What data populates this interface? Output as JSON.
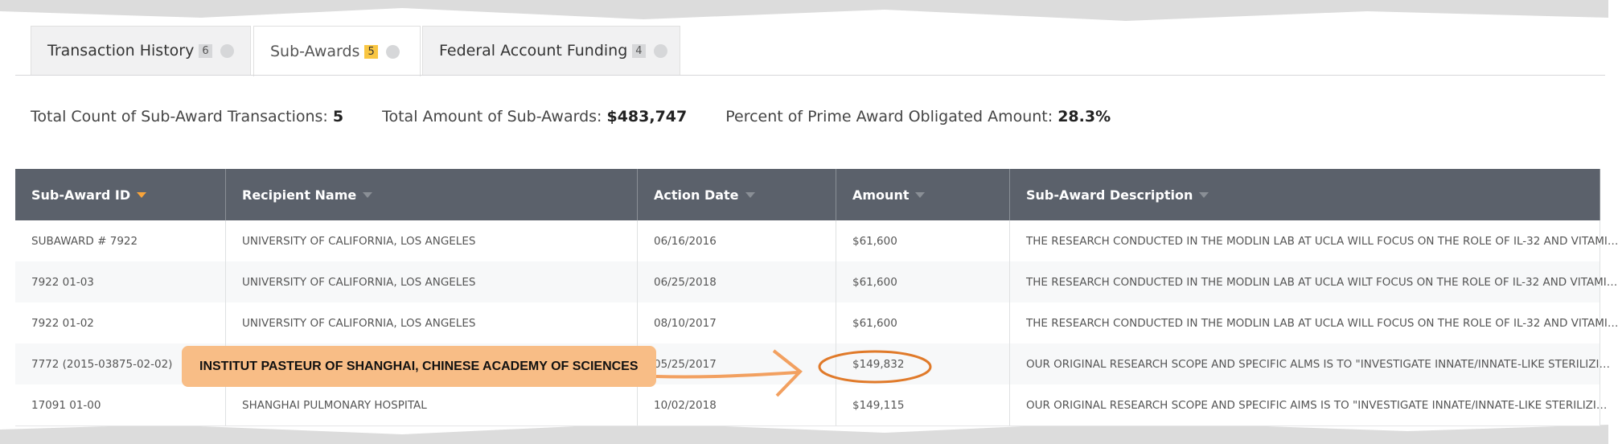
{
  "tabs": [
    {
      "label": "Transaction History",
      "badge": "6"
    },
    {
      "label": "Sub-Awards",
      "badge": "5"
    },
    {
      "label": "Federal Account Funding",
      "badge": "4"
    }
  ],
  "summary": [
    {
      "label": "Total Count of Sub-Award Transactions:",
      "value": "5"
    },
    {
      "label": "Total Amount of Sub-Awards:",
      "value": "$483,747"
    },
    {
      "label": "Percent of Prime Award Obligated Amount:",
      "value": "28.3%"
    }
  ],
  "table": {
    "columns": [
      "Sub-Award ID",
      "Recipient Name",
      "Action Date",
      "Amount",
      "Sub-Award Description"
    ],
    "rows": [
      {
        "id": "SUBAWARD # 7922",
        "recipient": "UNIVERSITY OF CALIFORNIA, LOS ANGELES",
        "date": "06/16/2016",
        "amount": "$61,600",
        "description": "THE RESEARCH CONDUCTED IN THE MODLIN LAB AT UCLA WILL FOCUS ON THE ROLE OF IL-32 AND VITAMI…"
      },
      {
        "id": "7922 01-03",
        "recipient": "UNIVERSITY OF CALIFORNIA, LOS ANGELES",
        "date": "06/25/2018",
        "amount": "$61,600",
        "description": "THE RESEARCH CONDUCTED IN THE MODLIN LAB AT UCLA WILT FOCUS ON THE ROLE OF IL-32 AND VITAMI…"
      },
      {
        "id": "7922 01-02",
        "recipient": "UNIVERSITY OF CALIFORNIA, LOS ANGELES",
        "date": "08/10/2017",
        "amount": "$61,600",
        "description": "THE RESEARCH CONDUCTED IN THE MODLIN LAB AT UCLA WILL FOCUS ON THE ROLE OF IL-32 AND VITAMI…"
      },
      {
        "id": "7772 (2015-03875-02-02)",
        "date": "05/25/2017",
        "amount": "$149,832",
        "description": "OUR ORIGINAL RESEARCH SCOPE AND SPECIFIC ALMS IS TO \"INVESTIGATE INNATE/INNATE-LIKE STERILIZI…"
      },
      {
        "id": "17091 01-00",
        "recipient": "SHANGHAI PULMONARY HOSPITAL",
        "date": "10/02/2018",
        "amount": "$149,115",
        "description": "OUR ORIGINAL RESEARCH SCOPE AND SPECIFIC AIMS IS TO \"INVESTIGATE INNATE/INNATE-LIKE STERILIZI…"
      }
    ]
  },
  "annotation": {
    "label": "INSTITUT PASTEUR OF SHANGHAI, CHINESE ACADEMY OF SCIENCES"
  }
}
